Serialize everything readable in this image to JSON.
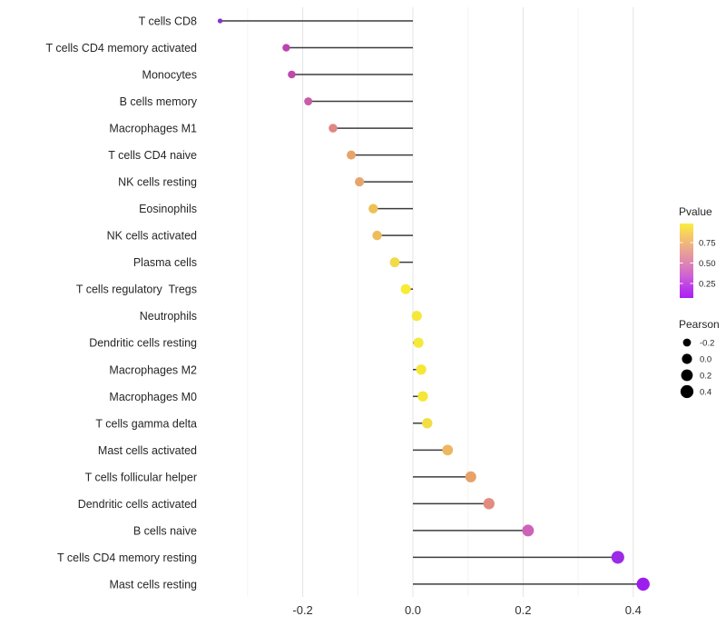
{
  "chart_data": {
    "type": "scatter",
    "variant": "lollipop",
    "title": "",
    "xlabel": "",
    "ylabel": "",
    "x_axis": {
      "range": [
        -0.39,
        0.47
      ],
      "major_ticks": [
        {
          "v": -0.2,
          "label": "-0.2"
        },
        {
          "v": 0.0,
          "label": "0.0"
        },
        {
          "v": 0.2,
          "label": "0.2"
        },
        {
          "v": 0.4,
          "label": "0.4"
        }
      ],
      "minor_ticks": [
        -0.3,
        -0.1,
        0.1,
        0.3
      ],
      "grid": true
    },
    "categories": [
      {
        "label": "T cells CD8",
        "pearson": -0.35,
        "color": "#8833CC"
      },
      {
        "label": "T cells CD4 memory activated",
        "pearson": -0.23,
        "color": "#BC44B0"
      },
      {
        "label": "Monocytes",
        "pearson": -0.22,
        "color": "#C148AC"
      },
      {
        "label": "B cells memory",
        "pearson": -0.19,
        "color": "#C75DA6"
      },
      {
        "label": "Macrophages M1",
        "pearson": -0.145,
        "color": "#E08684"
      },
      {
        "label": "T cells CD4 naive",
        "pearson": -0.112,
        "color": "#E8A369"
      },
      {
        "label": "NK cells resting",
        "pearson": -0.097,
        "color": "#E7A56E"
      },
      {
        "label": "Eosinophils",
        "pearson": -0.072,
        "color": "#EEC156"
      },
      {
        "label": "NK cells activated",
        "pearson": -0.065,
        "color": "#EDBD5C"
      },
      {
        "label": "Plasma cells",
        "pearson": -0.033,
        "color": "#F2DA49"
      },
      {
        "label": "T cells regulatory  Tregs",
        "pearson": -0.013,
        "color": "#F7EC33"
      },
      {
        "label": "Neutrophils",
        "pearson": 0.007,
        "color": "#F5E83B"
      },
      {
        "label": "Dendritic cells resting",
        "pearson": 0.01,
        "color": "#F5E93A"
      },
      {
        "label": "Macrophages M2",
        "pearson": 0.015,
        "color": "#F5E737"
      },
      {
        "label": "Macrophages M0",
        "pearson": 0.018,
        "color": "#F5E637"
      },
      {
        "label": "T cells gamma delta",
        "pearson": 0.026,
        "color": "#F2DE42"
      },
      {
        "label": "Mast cells activated",
        "pearson": 0.063,
        "color": "#ECB75F"
      },
      {
        "label": "T cells follicular helper",
        "pearson": 0.105,
        "color": "#E8A167"
      },
      {
        "label": "Dendritic cells activated",
        "pearson": 0.138,
        "color": "#E28C7F"
      },
      {
        "label": "B cells naive",
        "pearson": 0.209,
        "color": "#CD63B8"
      },
      {
        "label": "T cells CD4 memory resting",
        "pearson": 0.372,
        "color": "#9C2BE6"
      },
      {
        "label": "Mast cells resting",
        "pearson": 0.418,
        "color": "#9D1EEC"
      }
    ],
    "legend": {
      "position": "right",
      "pvalue": {
        "title": "Pvalue",
        "ticks": [
          {
            "v": 0.75,
            "label": "0.75"
          },
          {
            "v": 0.5,
            "label": "0.50"
          },
          {
            "v": 0.25,
            "label": "0.25"
          }
        ],
        "gradient": [
          {
            "offset": 0.0,
            "color": "#A821F2"
          },
          {
            "offset": 0.15,
            "color": "#BC3DE8"
          },
          {
            "offset": 0.3,
            "color": "#CE63D2"
          },
          {
            "offset": 0.45,
            "color": "#DC82B6"
          },
          {
            "offset": 0.6,
            "color": "#E89C9B"
          },
          {
            "offset": 0.72,
            "color": "#EFB37F"
          },
          {
            "offset": 0.85,
            "color": "#F5CC62"
          },
          {
            "offset": 1.0,
            "color": "#FBEE3E"
          }
        ]
      },
      "pearson": {
        "title": "Pearson",
        "dot_color": "#000000",
        "items": [
          {
            "label": "-0.2",
            "value": -0.2
          },
          {
            "label": "0.0",
            "value": 0.0
          },
          {
            "label": "0.2",
            "value": 0.2
          },
          {
            "label": "0.4",
            "value": 0.4
          }
        ]
      }
    },
    "style": {
      "stem_color": "#3C3C3C",
      "major_grid_color": "#E4E4E4",
      "minor_grid_color": "#F1F1F1",
      "background": "#FFFFFF"
    }
  }
}
